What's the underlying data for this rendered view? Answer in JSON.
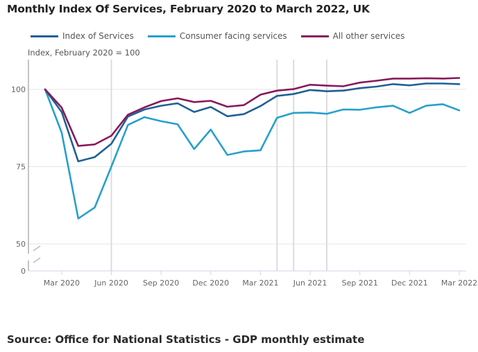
{
  "title": "Monthly Index Of Services, February 2020 to March 2022, UK",
  "source": "Source: Office for National Statistics - GDP monthly estimate",
  "chart_data": {
    "type": "line",
    "title": "Monthly Index Of Services, February 2020 to March 2022, UK",
    "ylabel": "Index, February 2020 = 100",
    "xlabel": "",
    "ylim": [
      0,
      110
    ],
    "y_axis_break": [
      0,
      50
    ],
    "yticks": [
      0,
      50,
      75,
      100
    ],
    "ytick_labels": [
      "0",
      "50",
      "75",
      "100"
    ],
    "legend_position": "top",
    "grid": true,
    "x": [
      "Feb 2020",
      "Mar 2020",
      "Apr 2020",
      "May 2020",
      "Jun 2020",
      "Jul 2020",
      "Aug 2020",
      "Sep 2020",
      "Oct 2020",
      "Nov 2020",
      "Dec 2020",
      "Jan 2021",
      "Feb 2021",
      "Mar 2021",
      "Apr 2021",
      "May 2021",
      "Jun 2021",
      "Jul 2021",
      "Aug 2021",
      "Sep 2021",
      "Oct 2021",
      "Nov 2021",
      "Dec 2021",
      "Jan 2022",
      "Feb 2022",
      "Mar 2022"
    ],
    "xtick_labels": [
      "Mar 2020",
      "Jun 2020",
      "Sep 2020",
      "Dec 2020",
      "Mar 2021",
      "Jun 2021",
      "Sep 2021",
      "Dec 2021",
      "Mar 2022"
    ],
    "vertical_reference_lines": [
      "Jun 2020",
      "Apr 2021",
      "May 2021",
      "Jul 2021"
    ],
    "series": [
      {
        "name": "Index of Services",
        "color": "#206095",
        "values": [
          100,
          92.7,
          76.7,
          78.1,
          82.4,
          91.2,
          93.5,
          94.7,
          95.5,
          92.7,
          94.3,
          91.3,
          92.0,
          94.6,
          97.9,
          98.5,
          99.8,
          99.4,
          99.6,
          100.4,
          100.9,
          101.7,
          101.3,
          101.9,
          101.9,
          101.7
        ]
      },
      {
        "name": "Consumer facing services",
        "color": "#27a0cc",
        "values": [
          100,
          86.0,
          58.2,
          61.8,
          75.0,
          88.5,
          91.0,
          89.7,
          88.7,
          80.7,
          87.0,
          78.8,
          79.9,
          80.3,
          90.8,
          92.4,
          92.5,
          92.1,
          93.5,
          93.4,
          94.2,
          94.7,
          92.4,
          94.7,
          95.2,
          93.2
        ]
      },
      {
        "name": "All other services",
        "color": "#871a5b",
        "values": [
          100,
          94.1,
          81.7,
          82.2,
          85.0,
          91.8,
          94.2,
          96.2,
          97.1,
          95.9,
          96.3,
          94.4,
          94.9,
          98.3,
          99.6,
          100.1,
          101.5,
          101.2,
          101.0,
          102.2,
          102.8,
          103.5,
          103.5,
          103.6,
          103.5,
          103.7
        ]
      }
    ]
  }
}
